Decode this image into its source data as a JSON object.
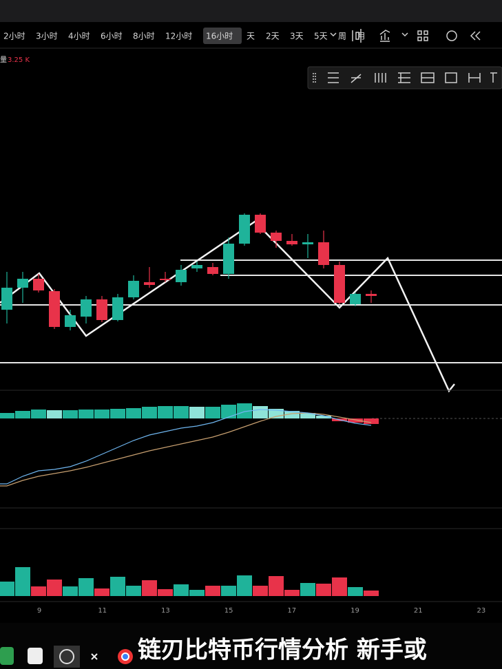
{
  "toolbar": {
    "intervals": [
      "2小时",
      "3小时",
      "4小时",
      "6小时",
      "8小时",
      "12小时",
      "16小时",
      "天",
      "2天",
      "3天",
      "5天",
      "周",
      "月"
    ],
    "selected": 6
  },
  "indicator": {
    "label": "量",
    "value": "3.25 K"
  },
  "chart_data": [
    {
      "type": "candlestick",
      "ylim": [
        0,
        47
      ],
      "up_color": "#1fb39a",
      "down_color": "#e8334a",
      "open": [
        11.5,
        14.7,
        16.0,
        14.2,
        9.0,
        10.5,
        13.0,
        10.0,
        13.3,
        15.5,
        16.0,
        15.5,
        17.5,
        17.7,
        16.7,
        21.1,
        25.3,
        22.7,
        21.5,
        21.0,
        21.3,
        18.0,
        12.3,
        13.8
      ],
      "high": [
        17.0,
        17.0,
        16.7,
        14.5,
        11.5,
        13.5,
        13.5,
        13.8,
        16.5,
        17.7,
        17.0,
        18.0,
        18.5,
        18.3,
        22.0,
        25.5,
        25.5,
        23.0,
        22.5,
        22.5,
        23.0,
        18.5,
        14.0,
        14.3
      ],
      "low": [
        9.5,
        12.5,
        14.0,
        8.7,
        8.5,
        9.5,
        9.7,
        9.8,
        13.0,
        14.7,
        15.5,
        15.0,
        17.0,
        16.5,
        16.0,
        20.8,
        22.5,
        20.5,
        20.8,
        19.0,
        17.5,
        12.3,
        12.0,
        12.5
      ],
      "close": [
        14.7,
        16.0,
        14.3,
        9.0,
        10.7,
        13.0,
        10.0,
        13.3,
        15.7,
        15.1,
        15.8,
        17.3,
        18.0,
        16.7,
        21.1,
        25.3,
        22.7,
        21.5,
        21.0,
        21.3,
        18.0,
        12.5,
        13.8,
        13.5
      ]
    },
    {
      "type": "macd",
      "ylim": [
        -13,
        4
      ],
      "up_color": "#20b49a",
      "fade_color": "#8fe3d8",
      "down_color": "#e8334a",
      "dif_color": "#6fb6f0",
      "dea_color": "#c8a070",
      "histogram": [
        0.8,
        1.1,
        1.3,
        1.2,
        1.2,
        1.3,
        1.3,
        1.4,
        1.5,
        1.7,
        1.8,
        1.8,
        1.7,
        1.7,
        2.0,
        2.2,
        1.8,
        1.4,
        1.1,
        0.8,
        0.4,
        -0.4,
        -0.6,
        -0.8
      ],
      "dif": [
        -9.5,
        -8.4,
        -7.6,
        -7.4,
        -7.0,
        -6.2,
        -5.2,
        -4.2,
        -3.2,
        -2.4,
        -1.9,
        -1.4,
        -1.1,
        -0.6,
        0.2,
        1.0,
        1.3,
        1.2,
        1.0,
        0.8,
        0.4,
        -0.2,
        -0.7,
        -1.0
      ],
      "dea": [
        -9.8,
        -9.0,
        -8.4,
        -8.0,
        -7.6,
        -7.1,
        -6.5,
        -5.9,
        -5.3,
        -4.7,
        -4.2,
        -3.7,
        -3.2,
        -2.7,
        -2.0,
        -1.2,
        -0.4,
        0.3,
        0.7,
        0.8,
        0.6,
        0.2,
        -0.2,
        -0.6
      ]
    },
    {
      "type": "volume",
      "ylim": [
        0,
        9.6
      ],
      "values": [
        2.1,
        4.2,
        1.4,
        2.4,
        1.4,
        2.6,
        1.1,
        2.8,
        1.5,
        2.3,
        1.0,
        1.7,
        0.9,
        1.5,
        1.5,
        3.0,
        1.5,
        2.9,
        0.9,
        1.9,
        1.8,
        2.7,
        1.3,
        0.8
      ]
    }
  ],
  "x_labels": [
    "9",
    "11",
    "13",
    "15",
    "17",
    "19",
    "21",
    "23"
  ],
  "subtitle": "链刃比特币行情分析  新手或"
}
